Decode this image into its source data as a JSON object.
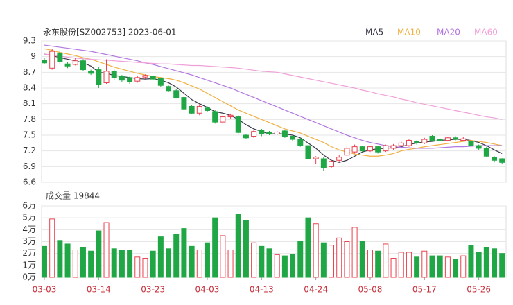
{
  "chart_data": [
    {
      "type": "candlestick",
      "title": "永东股份[SZ002753] 2023-06-01",
      "up_color": "#e8414e",
      "down_color": "#20a745",
      "ylim": [
        6.6,
        9.3
      ],
      "yticks": [
        9.3,
        9,
        8.7,
        8.4,
        8.1,
        7.8,
        7.5,
        7.2,
        6.9,
        6.6
      ],
      "grid": true,
      "open": [
        8.93,
        8.78,
        9.07,
        8.86,
        8.85,
        8.92,
        8.72,
        8.75,
        8.5,
        8.72,
        8.62,
        8.6,
        8.53,
        8.61,
        8.62,
        8.58,
        8.43,
        8.35,
        8.22,
        8.05,
        7.92,
        8.02,
        7.95,
        7.75,
        7.85,
        7.85,
        7.5,
        7.48,
        7.6,
        7.56,
        7.52,
        7.58,
        7.48,
        7.42,
        7.3,
        7.05,
        7.05,
        6.9,
        7.02,
        7.12,
        7.18,
        7.28,
        7.2,
        7.28,
        7.2,
        7.25,
        7.3,
        7.3,
        7.38,
        7.35,
        7.48,
        7.42,
        7.4,
        7.45,
        7.4,
        7.38,
        7.3,
        7.25,
        7.08,
        7.05
      ],
      "high": [
        8.98,
        9.15,
        9.12,
        8.9,
        8.98,
        8.95,
        8.75,
        8.8,
        8.95,
        8.75,
        8.65,
        8.62,
        8.63,
        8.66,
        8.64,
        8.6,
        8.45,
        8.38,
        8.25,
        8.08,
        8.1,
        8.05,
        7.98,
        7.88,
        7.9,
        7.88,
        7.52,
        7.6,
        7.62,
        7.58,
        7.58,
        7.6,
        7.5,
        7.45,
        7.32,
        7.1,
        7.08,
        7.03,
        7.12,
        7.3,
        7.32,
        7.3,
        7.3,
        7.3,
        7.32,
        7.33,
        7.38,
        7.42,
        7.4,
        7.45,
        7.5,
        7.44,
        7.47,
        7.48,
        7.46,
        7.4,
        7.32,
        7.28,
        7.1,
        7.06
      ],
      "low": [
        8.85,
        8.75,
        8.85,
        8.78,
        8.83,
        8.72,
        8.65,
        8.4,
        8.48,
        8.55,
        8.52,
        8.48,
        8.5,
        8.58,
        8.55,
        8.42,
        8.33,
        8.2,
        7.98,
        7.9,
        7.88,
        7.95,
        7.72,
        7.72,
        7.82,
        7.53,
        7.42,
        7.45,
        7.48,
        7.5,
        7.5,
        7.45,
        7.38,
        7.28,
        7.02,
        6.95,
        6.82,
        6.88,
        7.0,
        7.1,
        7.15,
        7.18,
        7.18,
        7.15,
        7.18,
        7.22,
        7.28,
        7.28,
        7.32,
        7.33,
        7.38,
        7.38,
        7.38,
        7.4,
        7.38,
        7.27,
        7.22,
        7.08,
        6.98,
        6.95
      ],
      "close": [
        8.88,
        9.1,
        8.9,
        8.82,
        8.92,
        8.75,
        8.68,
        8.47,
        8.72,
        8.6,
        8.55,
        8.52,
        8.6,
        8.64,
        8.57,
        8.45,
        8.35,
        8.22,
        8.0,
        7.92,
        8.05,
        7.97,
        7.75,
        7.85,
        7.88,
        7.55,
        7.45,
        7.57,
        7.52,
        7.53,
        7.56,
        7.48,
        7.42,
        7.3,
        7.05,
        7.08,
        6.88,
        7.0,
        7.08,
        7.25,
        7.28,
        7.2,
        7.28,
        7.18,
        7.3,
        7.3,
        7.35,
        7.4,
        7.35,
        7.42,
        7.4,
        7.4,
        7.45,
        7.42,
        7.43,
        7.3,
        7.25,
        7.1,
        7.02,
        6.98
      ],
      "series": [
        {
          "name": "MA5",
          "color": "#3a3a4a",
          "values": [
            9.05,
            9.02,
            8.98,
            8.95,
            8.92,
            8.88,
            8.82,
            8.7,
            8.68,
            8.64,
            8.62,
            8.6,
            8.58,
            8.57,
            8.58,
            8.55,
            8.5,
            8.42,
            8.3,
            8.18,
            8.1,
            8.03,
            7.95,
            7.92,
            7.88,
            7.8,
            7.7,
            7.62,
            7.57,
            7.52,
            7.53,
            7.52,
            7.5,
            7.45,
            7.35,
            7.25,
            7.12,
            7.02,
            6.98,
            7.02,
            7.1,
            7.18,
            7.22,
            7.24,
            7.25,
            7.26,
            7.28,
            7.32,
            7.35,
            7.37,
            7.38,
            7.4,
            7.41,
            7.42,
            7.42,
            7.4,
            7.36,
            7.3,
            7.22,
            7.15
          ]
        },
        {
          "name": "MA10",
          "color": "#f0b040",
          "values": [
            9.15,
            9.12,
            9.08,
            9.05,
            9.02,
            8.98,
            8.95,
            8.9,
            8.85,
            8.8,
            8.76,
            8.72,
            8.68,
            8.65,
            8.62,
            8.6,
            8.58,
            8.55,
            8.5,
            8.44,
            8.38,
            8.3,
            8.22,
            8.14,
            8.06,
            7.98,
            7.92,
            7.86,
            7.8,
            7.74,
            7.68,
            7.62,
            7.58,
            7.54,
            7.48,
            7.42,
            7.36,
            7.28,
            7.22,
            7.18,
            7.14,
            7.12,
            7.1,
            7.1,
            7.12,
            7.15,
            7.2,
            7.23,
            7.25,
            7.28,
            7.3,
            7.32,
            7.34,
            7.36,
            7.38,
            7.4,
            7.38,
            7.36,
            7.33,
            7.3
          ]
        },
        {
          "name": "MA20",
          "color": "#b277e0",
          "values": [
            9.22,
            9.2,
            9.18,
            9.16,
            9.14,
            9.12,
            9.1,
            9.07,
            9.04,
            9.01,
            8.98,
            8.95,
            8.92,
            8.88,
            8.85,
            8.81,
            8.77,
            8.73,
            8.69,
            8.65,
            8.6,
            8.55,
            8.5,
            8.45,
            8.4,
            8.34,
            8.28,
            8.22,
            8.16,
            8.1,
            8.04,
            7.98,
            7.92,
            7.86,
            7.8,
            7.74,
            7.68,
            7.62,
            7.56,
            7.5,
            7.45,
            7.4,
            7.36,
            7.33,
            7.3,
            7.28,
            7.27,
            7.26,
            7.25,
            7.25,
            7.25,
            7.26,
            7.27,
            7.28,
            7.28,
            7.29,
            7.3,
            7.3,
            7.3,
            7.3
          ]
        },
        {
          "name": "MA60",
          "color": "#f0a0d8",
          "values": [
            9.05,
            9.03,
            9.01,
            8.99,
            8.97,
            8.96,
            8.95,
            8.94,
            8.93,
            8.92,
            8.91,
            8.9,
            8.89,
            8.88,
            8.87,
            8.86,
            8.86,
            8.85,
            8.84,
            8.83,
            8.83,
            8.82,
            8.81,
            8.8,
            8.79,
            8.78,
            8.76,
            8.74,
            8.72,
            8.71,
            8.7,
            8.67,
            8.64,
            8.61,
            8.58,
            8.55,
            8.52,
            8.49,
            8.46,
            8.43,
            8.4,
            8.36,
            8.33,
            8.29,
            8.26,
            8.23,
            8.19,
            8.16,
            8.12,
            8.09,
            8.06,
            8.03,
            8.0,
            7.97,
            7.94,
            7.91,
            7.88,
            7.85,
            7.83,
            7.8
          ]
        }
      ]
    },
    {
      "type": "bar",
      "title": "成交量 19844",
      "ylim": [
        0,
        6
      ],
      "yticks": [
        {
          "value": 6,
          "label": "6万"
        },
        {
          "value": 5,
          "label": "5万"
        },
        {
          "value": 4,
          "label": "4万"
        },
        {
          "value": 3,
          "label": "3万"
        },
        {
          "value": 2,
          "label": "2万"
        },
        {
          "value": 1,
          "label": "1万"
        },
        {
          "value": 0,
          "label": "0万"
        }
      ],
      "categories": [
        "03-03",
        null,
        null,
        null,
        null,
        null,
        null,
        "03-14",
        null,
        null,
        null,
        null,
        null,
        null,
        "03-23",
        null,
        null,
        null,
        null,
        null,
        null,
        "04-03",
        null,
        null,
        null,
        null,
        null,
        null,
        "04-13",
        null,
        null,
        null,
        null,
        null,
        null,
        "04-24",
        null,
        null,
        null,
        null,
        null,
        null,
        "05-08",
        null,
        null,
        null,
        null,
        null,
        null,
        "05-17",
        null,
        null,
        null,
        null,
        null,
        null,
        "05-26",
        null,
        null,
        null
      ],
      "values": [
        2.6,
        4.9,
        3.1,
        2.8,
        2.3,
        2.5,
        2.2,
        3.9,
        4.6,
        2.4,
        2.3,
        2.3,
        1.7,
        1.6,
        2.2,
        3.4,
        2.4,
        3.6,
        4.1,
        2.6,
        2.3,
        2.9,
        5.0,
        3.5,
        2.3,
        5.3,
        4.8,
        2.9,
        2.6,
        2.4,
        1.9,
        1.8,
        1.9,
        3.0,
        5.0,
        4.5,
        2.9,
        2.7,
        3.3,
        3.0,
        4.2,
        3.0,
        2.3,
        2.2,
        2.8,
        1.6,
        2.1,
        2.1,
        1.7,
        2.2,
        1.8,
        1.8,
        1.7,
        1.5,
        1.8,
        2.7,
        2.1,
        2.5,
        2.4,
        2.0
      ]
    }
  ]
}
